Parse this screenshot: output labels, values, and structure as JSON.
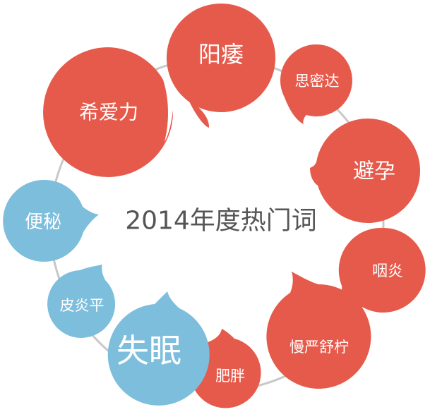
{
  "title": "2014年度热门词",
  "colors": {
    "hot": "#E65A4B",
    "cool": "#7DBEDC",
    "ring": "#C8C8C8",
    "title": "#555555",
    "label": "#FFFFFF"
  },
  "terms": [
    {
      "label": "阳痿",
      "category": "hot"
    },
    {
      "label": "思密达",
      "category": "hot"
    },
    {
      "label": "避孕",
      "category": "hot"
    },
    {
      "label": "咽炎",
      "category": "hot"
    },
    {
      "label": "慢严舒柠",
      "category": "hot"
    },
    {
      "label": "肥胖",
      "category": "hot"
    },
    {
      "label": "失眠",
      "category": "cool"
    },
    {
      "label": "皮炎平",
      "category": "cool"
    },
    {
      "label": "便秘",
      "category": "cool"
    },
    {
      "label": "希爱力",
      "category": "hot"
    }
  ]
}
